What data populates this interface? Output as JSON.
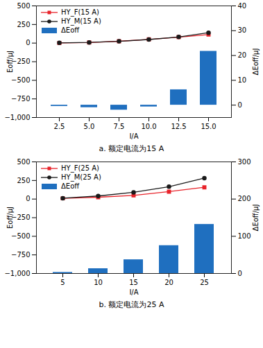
{
  "chart_data": [
    {
      "type": "line",
      "title": "a. 额定电流为15 A",
      "x_label": "I/A",
      "y_label": "Eoff/μJ",
      "y2_label": "ΔEoff/μJ",
      "categories": [
        "2.5",
        "5.0",
        "7.5",
        "10.0",
        "12.5",
        "15.0"
      ],
      "ylim": [
        -1000,
        500
      ],
      "yticks": [
        -1000,
        -750,
        -500,
        -250,
        0,
        250,
        500
      ],
      "y2lim": [
        -5,
        40
      ],
      "y2ticks": [
        0,
        10,
        20,
        30,
        40
      ],
      "legend": "upper left",
      "series": [
        {
          "name": "HY_F(15 A)",
          "type": "line",
          "color": "#e8232a",
          "marker": "square",
          "values": [
            2,
            8,
            25,
            50,
            80,
            115
          ]
        },
        {
          "name": "HY_M(15 A)",
          "type": "line",
          "color": "#1a1a1a",
          "marker": "circle",
          "values": [
            3,
            9,
            24,
            48,
            82,
            140
          ]
        },
        {
          "name": "ΔEoff",
          "type": "bar",
          "axis": "y2",
          "color": "#1f6fbf",
          "values": [
            -0.5,
            -1,
            -2,
            -0.7,
            6.2,
            21.7
          ]
        }
      ]
    },
    {
      "type": "line",
      "title": "b. 额定电流为25 A",
      "x_label": "I/A",
      "y_label": "Eoff/μJ",
      "y2_label": "ΔEoff/μJ",
      "categories": [
        "5",
        "10",
        "15",
        "20",
        "25"
      ],
      "ylim": [
        -1000,
        500
      ],
      "yticks": [
        -1000,
        -750,
        -500,
        -250,
        0,
        250,
        500
      ],
      "y2lim": [
        0,
        300
      ],
      "y2ticks": [
        0,
        100,
        200,
        300
      ],
      "legend": "upper left",
      "series": [
        {
          "name": "HY_F(25 A)",
          "type": "line",
          "color": "#e8232a",
          "marker": "square",
          "values": [
            10,
            25,
            50,
            100,
            158
          ]
        },
        {
          "name": "HY_M(25 A)",
          "type": "line",
          "color": "#1a1a1a",
          "marker": "circle",
          "values": [
            12,
            41,
            91,
            166,
            282
          ]
        },
        {
          "name": "ΔEoff",
          "type": "bar",
          "axis": "y2",
          "color": "#1f6fbf",
          "values": [
            3,
            13,
            37,
            75,
            132
          ]
        }
      ]
    }
  ]
}
